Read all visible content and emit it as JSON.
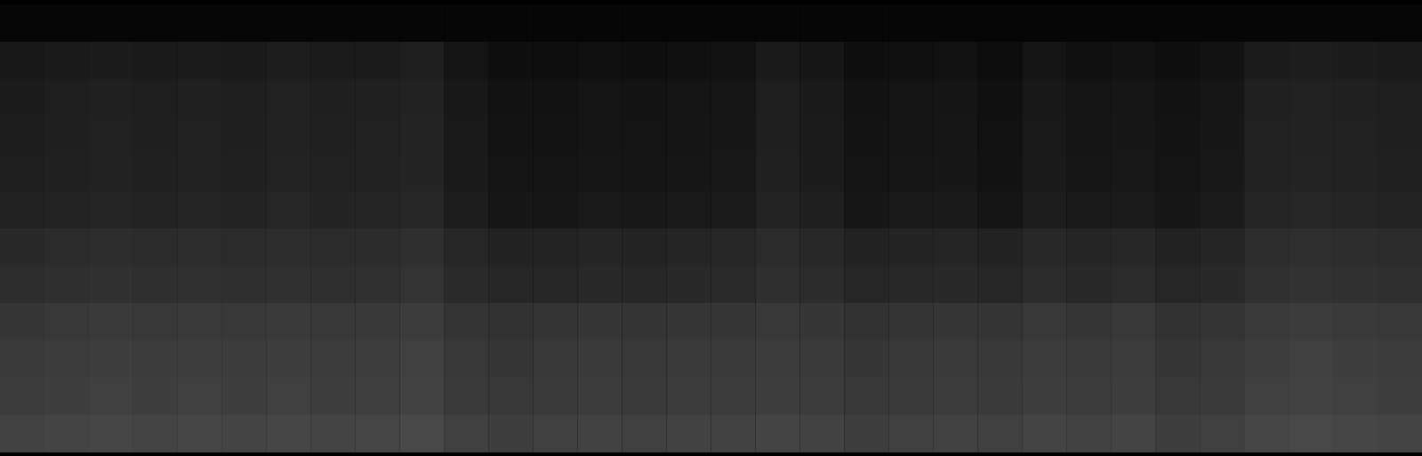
{
  "chart_data": {
    "type": "heatmap",
    "tick_labels": false,
    "values": [
      [
        6,
        6,
        6,
        6,
        6,
        6,
        6,
        6,
        6,
        6,
        6,
        6,
        6,
        6,
        6,
        6,
        6,
        6,
        6,
        6,
        6,
        6,
        6,
        6,
        6,
        6,
        6,
        6,
        6,
        6,
        6,
        6
      ],
      [
        24,
        26,
        28,
        26,
        28,
        26,
        29,
        27,
        28,
        30,
        20,
        14,
        14,
        16,
        15,
        16,
        18,
        26,
        22,
        14,
        16,
        17,
        12,
        20,
        16,
        18,
        14,
        18,
        28,
        29,
        28,
        26
      ],
      [
        28,
        30,
        32,
        30,
        32,
        30,
        33,
        31,
        32,
        34,
        24,
        18,
        18,
        20,
        19,
        20,
        22,
        30,
        26,
        18,
        20,
        21,
        16,
        24,
        20,
        22,
        18,
        22,
        32,
        33,
        32,
        30
      ],
      [
        29,
        31,
        33,
        31,
        33,
        31,
        34,
        32,
        33,
        35,
        25,
        19,
        19,
        21,
        20,
        21,
        23,
        31,
        27,
        19,
        21,
        22,
        17,
        25,
        21,
        23,
        19,
        23,
        33,
        34,
        33,
        31
      ],
      [
        30,
        32,
        34,
        32,
        34,
        32,
        35,
        33,
        34,
        36,
        26,
        20,
        20,
        22,
        21,
        22,
        24,
        32,
        28,
        20,
        22,
        23,
        18,
        26,
        22,
        24,
        20,
        24,
        34,
        35,
        34,
        32
      ],
      [
        33,
        35,
        37,
        35,
        37,
        35,
        38,
        36,
        37,
        39,
        29,
        23,
        23,
        25,
        24,
        25,
        27,
        35,
        31,
        23,
        25,
        26,
        21,
        29,
        25,
        27,
        23,
        27,
        37,
        38,
        37,
        35
      ],
      [
        41,
        43,
        45,
        43,
        45,
        43,
        45,
        43,
        44,
        47,
        38,
        34,
        35,
        37,
        35,
        37,
        38,
        43,
        40,
        34,
        36,
        37,
        34,
        40,
        37,
        39,
        34,
        37,
        45,
        46,
        45,
        43
      ],
      [
        45,
        47,
        49,
        47,
        49,
        47,
        49,
        47,
        48,
        51,
        42,
        38,
        39,
        41,
        39,
        41,
        42,
        47,
        44,
        38,
        40,
        41,
        38,
        44,
        41,
        43,
        38,
        41,
        49,
        50,
        49,
        47
      ],
      [
        54,
        56,
        58,
        56,
        58,
        56,
        58,
        56,
        57,
        60,
        52,
        50,
        52,
        54,
        52,
        54,
        54,
        56,
        54,
        50,
        52,
        54,
        52,
        56,
        54,
        56,
        50,
        52,
        58,
        60,
        58,
        56
      ],
      [
        58,
        60,
        62,
        60,
        62,
        60,
        62,
        60,
        61,
        64,
        56,
        54,
        56,
        58,
        56,
        58,
        58,
        60,
        58,
        54,
        56,
        58,
        56,
        60,
        58,
        60,
        54,
        56,
        62,
        64,
        62,
        60
      ],
      [
        60,
        62,
        64,
        62,
        64,
        62,
        64,
        62,
        63,
        66,
        58,
        56,
        58,
        60,
        58,
        60,
        60,
        62,
        60,
        56,
        58,
        60,
        58,
        62,
        60,
        62,
        56,
        58,
        64,
        66,
        64,
        62
      ],
      [
        66,
        68,
        70,
        68,
        70,
        68,
        70,
        68,
        69,
        72,
        64,
        62,
        64,
        66,
        64,
        66,
        66,
        68,
        66,
        62,
        64,
        66,
        64,
        68,
        66,
        68,
        62,
        64,
        70,
        72,
        70,
        68
      ]
    ]
  }
}
